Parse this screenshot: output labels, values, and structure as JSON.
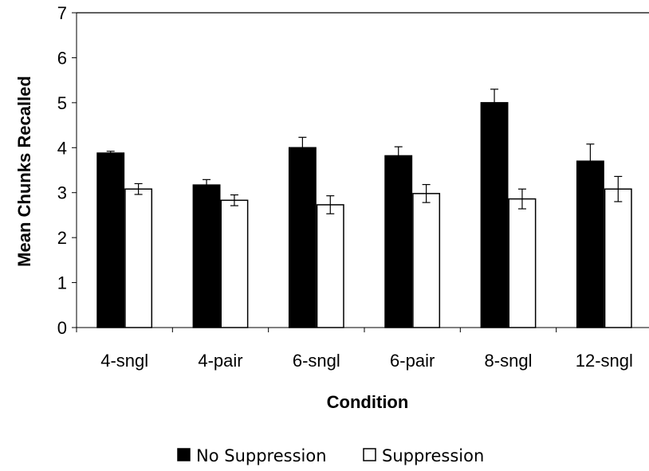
{
  "chart_data": {
    "type": "bar",
    "title": "",
    "xlabel": "Condition",
    "ylabel": "Mean Chunks Recalled",
    "categories": [
      "4-sngl",
      "4-pair",
      "6-sngl",
      "6-pair",
      "8-sngl",
      "12-sngl"
    ],
    "ylim": [
      0,
      7
    ],
    "yticks": [
      0,
      1,
      2,
      3,
      4,
      5,
      6,
      7
    ],
    "ytick_labels": [
      "0",
      "1",
      "2",
      "3",
      "4",
      "5",
      "6",
      "7"
    ],
    "grid": false,
    "legend_position": "bottom",
    "series": [
      {
        "name": "No Suppression",
        "fill": "#000000",
        "values": [
          3.88,
          3.17,
          4.0,
          3.82,
          5.0,
          3.7
        ],
        "error": [
          0.04,
          0.12,
          0.23,
          0.2,
          0.3,
          0.38
        ]
      },
      {
        "name": "Suppression",
        "fill": "#ffffff",
        "values": [
          3.08,
          2.83,
          2.73,
          2.98,
          2.86,
          3.08
        ],
        "error": [
          0.12,
          0.12,
          0.2,
          0.2,
          0.22,
          0.28
        ]
      }
    ]
  }
}
